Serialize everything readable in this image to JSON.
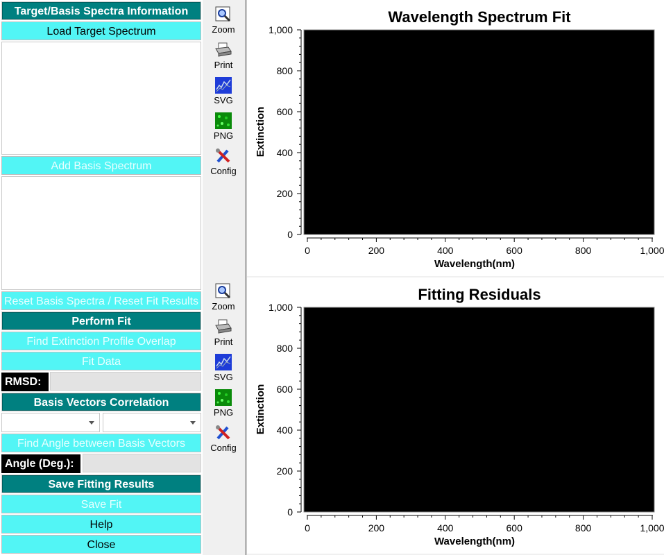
{
  "left_panel": {
    "target_header": "Target/Basis Spectra Information",
    "load_target": "Load Target Spectrum",
    "add_basis": "Add Basis Spectrum",
    "reset": "Reset Basis Spectra / Reset Fit Results",
    "perform_fit_header": "Perform Fit",
    "find_overlap": "Find Extinction Profile Overlap",
    "fit_data": "Fit Data",
    "rmsd_label": "RMSD:",
    "rmsd_value": "",
    "basis_corr_header": "Basis Vectors Correlation",
    "combo1_value": "",
    "combo2_value": "",
    "find_angle": "Find Angle between Basis Vectors",
    "angle_label": "Angle (Deg.):",
    "angle_value": "",
    "save_header": "Save Fitting Results",
    "save_fit": "Save Fit",
    "help": "Help",
    "close": "Close"
  },
  "toolbar": {
    "zoom": "Zoom",
    "print": "Print",
    "svg": "SVG",
    "png": "PNG",
    "config": "Config"
  },
  "plots": [
    {
      "title": "Wavelength Spectrum Fit",
      "xlabel": "Wavelength(nm)",
      "ylabel": "Extinction",
      "xticks": [
        "0",
        "200",
        "400",
        "600",
        "800",
        "1,000"
      ],
      "yticks": [
        "0",
        "200",
        "400",
        "600",
        "800",
        "1,000"
      ]
    },
    {
      "title": "Fitting Residuals",
      "xlabel": "Wavelength(nm)",
      "ylabel": "Extinction",
      "xticks": [
        "0",
        "200",
        "400",
        "600",
        "800",
        "1,000"
      ],
      "yticks": [
        "0",
        "200",
        "400",
        "600",
        "800",
        "1,000"
      ]
    }
  ],
  "colors": {
    "header_teal": "#008080",
    "button_cyan": "#52f5f5",
    "plot_bg": "#000000"
  }
}
